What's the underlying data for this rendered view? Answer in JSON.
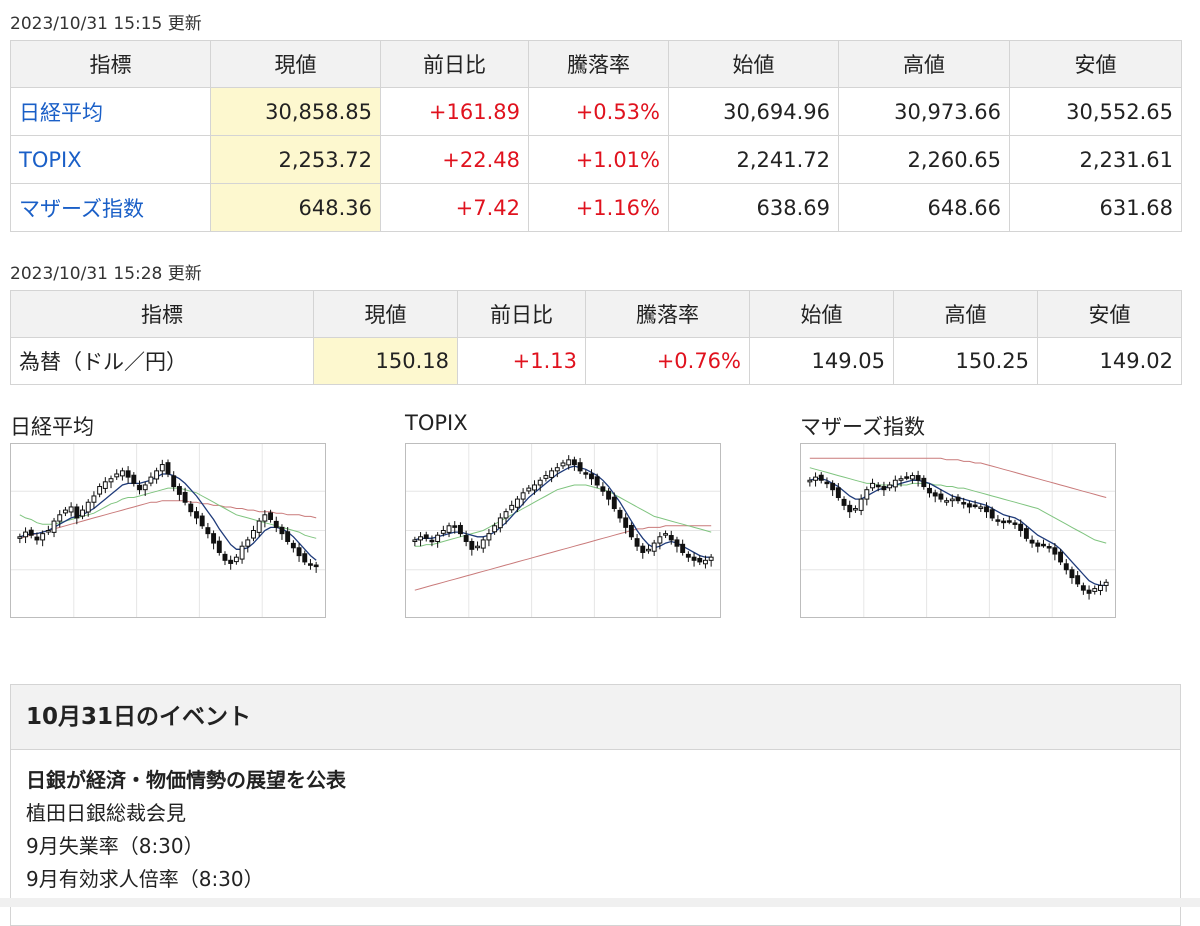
{
  "stock_update": "2023/10/31 15:15 更新",
  "fx_update": "2023/10/31 15:28 更新",
  "headers": {
    "index": "指標",
    "current": "現値",
    "change": "前日比",
    "pct": "騰落率",
    "open": "始値",
    "high": "高値",
    "low": "安値"
  },
  "indices": [
    {
      "name": "日経平均",
      "current": "30,858.85",
      "change": "+161.89",
      "pct": "+0.53%",
      "open": "30,694.96",
      "high": "30,973.66",
      "low": "30,552.65"
    },
    {
      "name": "TOPIX",
      "current": "2,253.72",
      "change": "+22.48",
      "pct": "+1.01%",
      "open": "2,241.72",
      "high": "2,260.65",
      "low": "2,231.61"
    },
    {
      "name": "マザーズ指数",
      "current": "648.36",
      "change": "+7.42",
      "pct": "+1.16%",
      "open": "638.69",
      "high": "648.66",
      "low": "631.68"
    }
  ],
  "fx": [
    {
      "name": "為替（ドル／円）",
      "current": "150.18",
      "change": "+1.13",
      "pct": "+0.76%",
      "open": "149.05",
      "high": "150.25",
      "low": "149.02"
    }
  ],
  "colors": {
    "up": "#e0121e",
    "link": "#1a5fc7",
    "highlight": "#fdf8cf",
    "ma_short": "#1f3b7a",
    "ma_mid": "#7fc47f",
    "ma_long": "#c97a7a"
  },
  "charts": [
    {
      "title": "日経平均"
    },
    {
      "title": "TOPIX"
    },
    {
      "title": "マザーズ指数"
    }
  ],
  "chart_data": [
    {
      "type": "candlestick",
      "title": "日経平均",
      "close": [
        46,
        49,
        47,
        44,
        48,
        50,
        56,
        60,
        63,
        65,
        58,
        63,
        68,
        72,
        78,
        81,
        83,
        86,
        88,
        84,
        80,
        76,
        79,
        84,
        88,
        92,
        86,
        78,
        73,
        68,
        62,
        58,
        53,
        48,
        42,
        36,
        31,
        29,
        33,
        40,
        44,
        50,
        56,
        60,
        57,
        52,
        48,
        43,
        39,
        34,
        30,
        28,
        27
      ],
      "series": [
        {
          "name": "",
          "values": [
            46,
            47,
            48,
            48,
            49,
            50,
            52,
            54,
            56,
            58,
            59,
            60,
            62,
            64,
            67,
            70,
            73,
            76,
            79,
            80,
            80,
            80,
            81,
            82,
            84,
            86,
            86,
            85,
            83,
            80,
            76,
            72,
            67,
            62,
            57,
            51,
            46,
            41,
            38,
            38,
            39,
            42,
            46,
            50,
            52,
            52,
            51,
            49,
            46,
            42,
            38,
            34,
            31
          ]
        },
        {
          "name": "",
          "values": [
            60,
            58,
            57,
            55,
            54,
            54,
            54,
            55,
            56,
            57,
            58,
            59,
            60,
            61,
            63,
            65,
            67,
            68,
            70,
            71,
            71,
            72,
            73,
            74,
            75,
            76,
            77,
            77,
            77,
            76,
            75,
            74,
            72,
            70,
            68,
            66,
            64,
            62,
            60,
            59,
            58,
            57,
            56,
            55,
            54,
            53,
            52,
            51,
            50,
            49,
            47,
            46,
            45
          ]
        },
        {
          "name": "",
          "values": [
            45,
            46,
            47,
            48,
            49,
            50,
            51,
            52,
            53,
            54,
            55,
            56,
            57,
            58,
            59,
            60,
            61,
            62,
            63,
            64,
            65,
            66,
            67,
            68,
            68,
            69,
            69,
            69,
            69,
            69,
            68,
            68,
            67,
            67,
            66,
            66,
            65,
            65,
            64,
            64,
            63,
            63,
            62,
            62,
            62,
            61,
            61,
            60,
            60,
            60,
            59,
            59,
            58
          ]
        }
      ]
    },
    {
      "type": "candlestick",
      "title": "TOPIX",
      "close": [
        44,
        46,
        45,
        43,
        47,
        50,
        53,
        52,
        48,
        43,
        38,
        40,
        44,
        48,
        53,
        58,
        62,
        66,
        70,
        74,
        77,
        79,
        82,
        85,
        88,
        90,
        93,
        95,
        92,
        88,
        86,
        83,
        79,
        75,
        70,
        64,
        58,
        52,
        46,
        40,
        36,
        38,
        42,
        46,
        48,
        44,
        40,
        36,
        33,
        31,
        30,
        31,
        33
      ],
      "series": [
        {
          "name": "",
          "values": [
            44,
            45,
            45,
            45,
            46,
            47,
            48,
            49,
            49,
            48,
            47,
            46,
            46,
            47,
            49,
            52,
            55,
            59,
            63,
            67,
            71,
            74,
            77,
            80,
            83,
            86,
            88,
            90,
            91,
            90,
            89,
            87,
            85,
            82,
            78,
            73,
            68,
            62,
            56,
            50,
            45,
            41,
            39,
            40,
            42,
            43,
            42,
            40,
            38,
            36,
            34,
            33,
            33
          ]
        },
        {
          "name": "",
          "values": [
            40,
            40,
            41,
            41,
            42,
            43,
            44,
            45,
            46,
            47,
            48,
            49,
            50,
            52,
            54,
            56,
            58,
            60,
            62,
            64,
            66,
            68,
            70,
            72,
            74,
            76,
            77,
            78,
            79,
            79,
            79,
            78,
            77,
            76,
            75,
            73,
            71,
            69,
            67,
            65,
            63,
            61,
            59,
            58,
            57,
            56,
            55,
            54,
            53,
            52,
            51,
            50,
            49
          ]
        },
        {
          "name": "",
          "values": [
            12,
            13,
            14,
            15,
            16,
            17,
            18,
            19,
            20,
            21,
            22,
            23,
            24,
            25,
            26,
            27,
            28,
            29,
            30,
            31,
            32,
            33,
            34,
            35,
            36,
            37,
            38,
            39,
            40,
            41,
            42,
            43,
            44,
            45,
            46,
            47,
            48,
            49,
            50,
            51,
            51,
            52,
            52,
            52,
            53,
            53,
            53,
            53,
            53,
            53,
            53,
            53,
            53
          ]
        }
      ]
    },
    {
      "type": "candlestick",
      "title": "マザーズ指数",
      "close": [
        82,
        84,
        82,
        80,
        76,
        71,
        66,
        62,
        64,
        70,
        76,
        80,
        78,
        76,
        79,
        82,
        83,
        84,
        85,
        82,
        78,
        74,
        72,
        70,
        69,
        70,
        69,
        67,
        65,
        66,
        65,
        62,
        58,
        56,
        55,
        56,
        54,
        50,
        45,
        42,
        40,
        41,
        39,
        35,
        30,
        25,
        20,
        16,
        12,
        10,
        13,
        15,
        17
      ],
      "series": [
        {
          "name": "",
          "values": [
            82,
            83,
            83,
            82,
            80,
            78,
            75,
            72,
            70,
            70,
            72,
            74,
            76,
            77,
            78,
            79,
            80,
            81,
            82,
            82,
            81,
            80,
            78,
            76,
            74,
            72,
            71,
            70,
            69,
            68,
            67,
            66,
            64,
            62,
            60,
            59,
            58,
            56,
            53,
            50,
            47,
            45,
            43,
            41,
            38,
            34,
            30,
            26,
            22,
            18,
            16,
            15,
            15
          ]
        },
        {
          "name": "",
          "values": [
            90,
            89,
            88,
            87,
            86,
            85,
            84,
            83,
            82,
            81,
            80,
            80,
            79,
            79,
            79,
            79,
            79,
            79,
            80,
            80,
            80,
            80,
            79,
            79,
            78,
            78,
            77,
            77,
            76,
            75,
            74,
            73,
            72,
            71,
            70,
            69,
            68,
            67,
            66,
            65,
            64,
            62,
            60,
            58,
            56,
            54,
            52,
            50,
            48,
            46,
            44,
            43,
            42
          ]
        },
        {
          "name": "",
          "values": [
            96,
            96,
            96,
            96,
            96,
            96,
            96,
            96,
            96,
            96,
            96,
            96,
            96,
            96,
            96,
            96,
            96,
            96,
            96,
            96,
            96,
            96,
            96,
            96,
            95,
            95,
            95,
            94,
            94,
            93,
            93,
            92,
            91,
            90,
            89,
            88,
            87,
            86,
            85,
            84,
            83,
            82,
            81,
            80,
            79,
            78,
            77,
            76,
            75,
            74,
            73,
            72,
            71
          ]
        }
      ]
    }
  ],
  "events": {
    "title": "10月31日のイベント",
    "lead": "日銀が経済・物価情勢の展望を公表",
    "items": [
      "植田日銀総裁会見",
      "9月失業率（8:30）",
      "9月有効求人倍率（8:30）"
    ]
  }
}
